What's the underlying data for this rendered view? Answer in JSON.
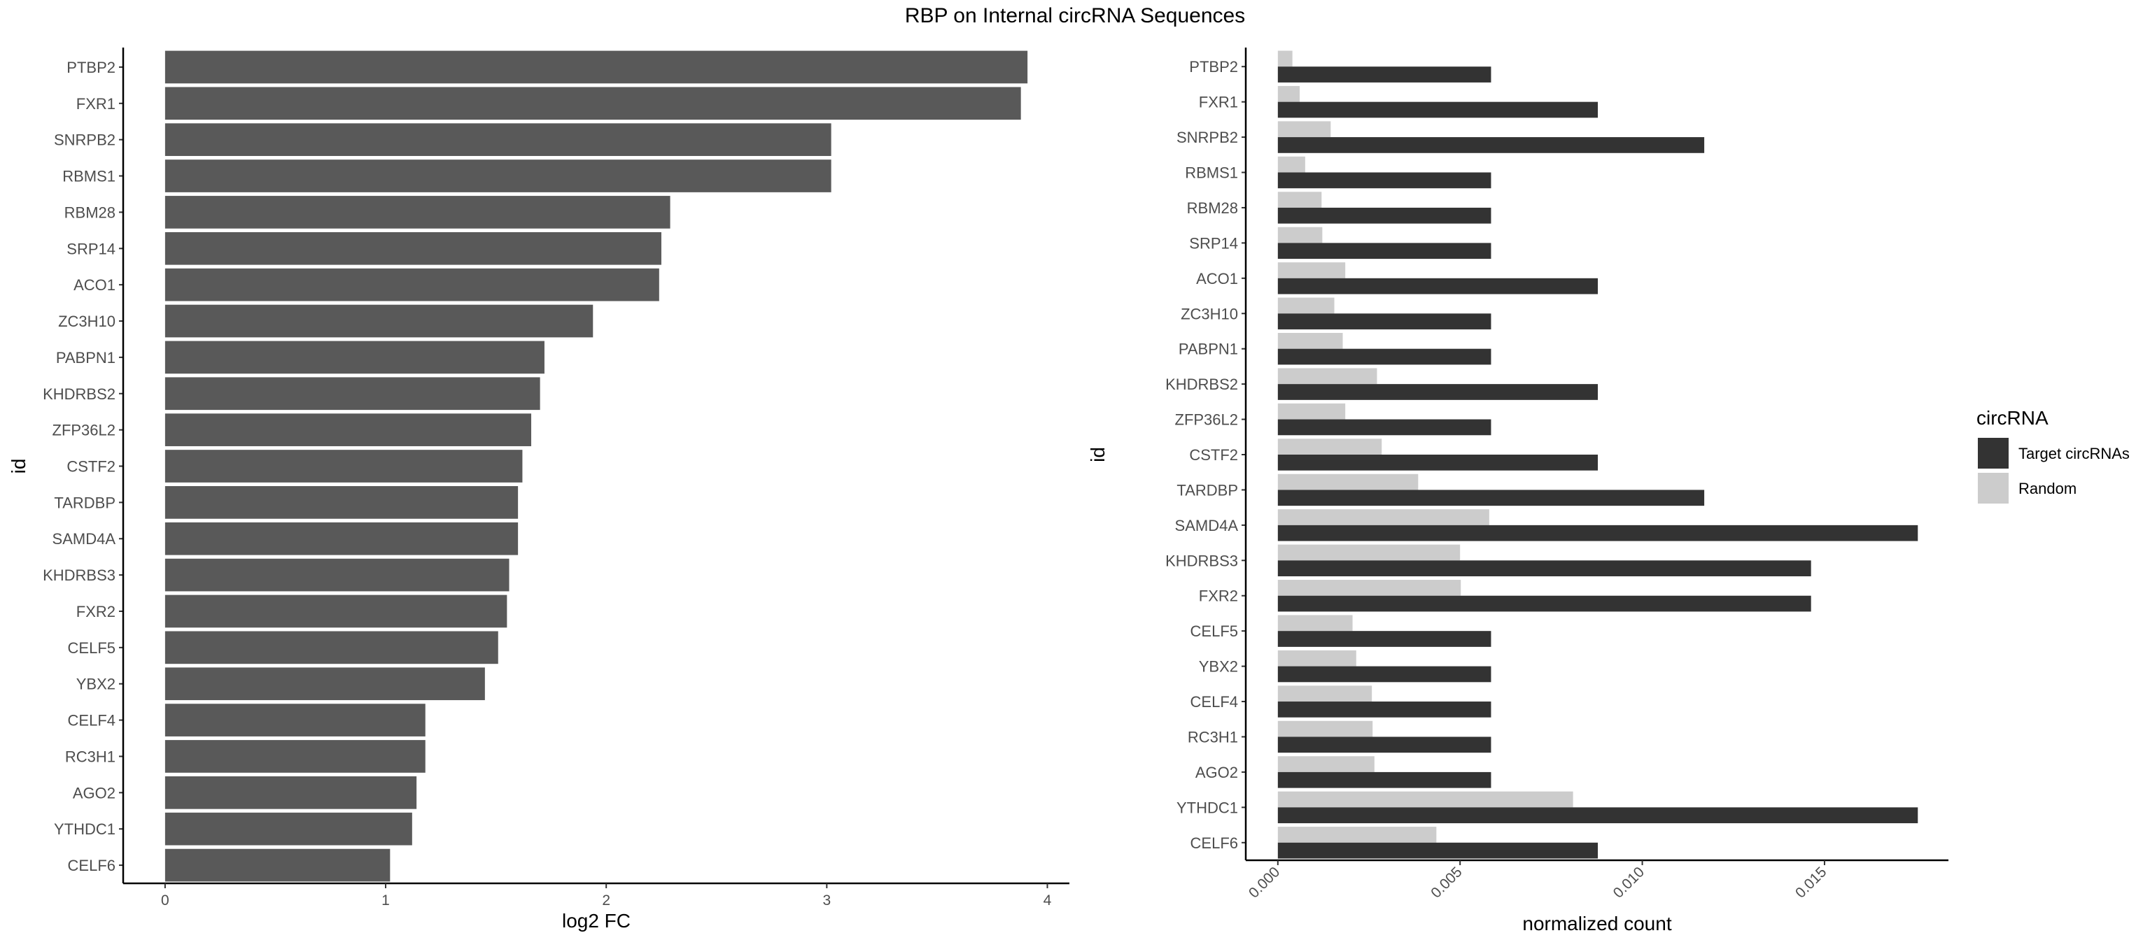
{
  "figure": {
    "title": "RBP on Internal circRNA Sequences"
  },
  "chart_data": [
    {
      "type": "bar",
      "orientation": "horizontal",
      "categories": [
        "PTBP2",
        "FXR1",
        "SNRPB2",
        "RBMS1",
        "RBM28",
        "SRP14",
        "ACO1",
        "ZC3H10",
        "PABPN1",
        "KHDRBS2",
        "ZFP36L2",
        "CSTF2",
        "TARDBP",
        "SAMD4A",
        "KHDRBS3",
        "FXR2",
        "CELF5",
        "YBX2",
        "CELF4",
        "RC3H1",
        "AGO2",
        "YTHDC1",
        "CELF6"
      ],
      "values": [
        3.91,
        3.88,
        3.02,
        3.02,
        2.29,
        2.25,
        2.24,
        1.94,
        1.72,
        1.7,
        1.66,
        1.62,
        1.6,
        1.6,
        1.56,
        1.55,
        1.51,
        1.45,
        1.18,
        1.18,
        1.14,
        1.12,
        1.02
      ],
      "xlabel": "log2 FC",
      "ylabel": "id",
      "xlim": [
        -0.19,
        4.1
      ],
      "xticks": [
        0,
        1,
        2,
        3,
        4
      ],
      "bar_color": "#595959",
      "grid": false
    },
    {
      "type": "bar",
      "orientation": "horizontal",
      "grouped": true,
      "categories": [
        "PTBP2",
        "FXR1",
        "SNRPB2",
        "RBMS1",
        "RBM28",
        "SRP14",
        "ACO1",
        "ZC3H10",
        "PABPN1",
        "KHDRBS2",
        "ZFP36L2",
        "CSTF2",
        "TARDBP",
        "SAMD4A",
        "KHDRBS3",
        "FXR2",
        "CELF5",
        "YBX2",
        "CELF4",
        "RC3H1",
        "AGO2",
        "YTHDC1",
        "CELF6"
      ],
      "series": [
        {
          "name": "Target circRNAs",
          "color": "#333333",
          "values": [
            0.00585,
            0.00878,
            0.0117,
            0.00585,
            0.00585,
            0.00585,
            0.00878,
            0.00585,
            0.00585,
            0.00878,
            0.00585,
            0.00878,
            0.0117,
            0.01756,
            0.01463,
            0.01463,
            0.00585,
            0.00585,
            0.00585,
            0.00585,
            0.00585,
            0.01756,
            0.00878
          ]
        },
        {
          "name": "Random",
          "color": "#cccccc",
          "values": [
            0.0004,
            0.0006,
            0.00145,
            0.00075,
            0.0012,
            0.00122,
            0.00185,
            0.00155,
            0.00178,
            0.00272,
            0.00185,
            0.00285,
            0.00385,
            0.0058,
            0.005,
            0.00502,
            0.00205,
            0.00215,
            0.00258,
            0.0026,
            0.00265,
            0.0081,
            0.00435
          ]
        }
      ],
      "xlabel": "normalized count",
      "ylabel": "id",
      "xlim": [
        -0.00088,
        0.0184
      ],
      "xticks": [
        0.0,
        0.005,
        0.01,
        0.015
      ],
      "xtick_labels": [
        "0.000",
        "0.005",
        "0.010",
        "0.015"
      ],
      "legend": {
        "title": "circRNA",
        "position": "right"
      },
      "grid": false
    }
  ]
}
